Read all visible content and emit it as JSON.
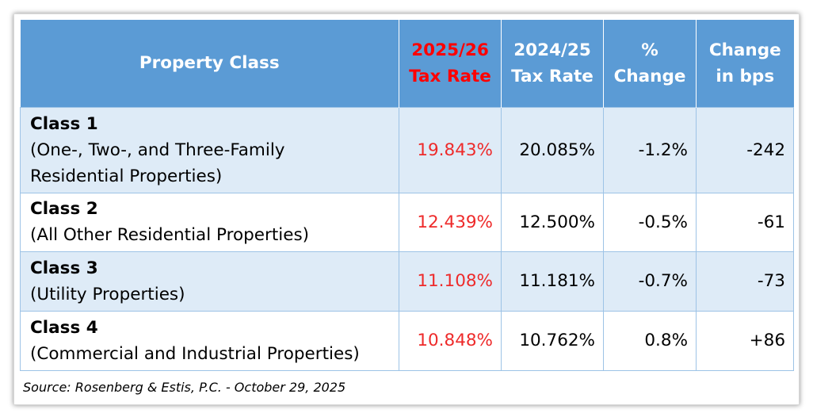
{
  "table": {
    "headers": {
      "property_class": "Property Class",
      "rate_2025_line1": "2025/26",
      "rate_2025_line2": "Tax Rate",
      "rate_2024_line1": "2024/25",
      "rate_2024_line2": "Tax Rate",
      "pct_line1": "%",
      "pct_line2": "Change",
      "bps_line1": "Change",
      "bps_line2": "in bps"
    },
    "rows": [
      {
        "class_name": "Class 1",
        "desc_line1": "(One-, Two-, and Three-Family",
        "desc_line2": "Residential Properties)",
        "rate_2025": "19.843%",
        "rate_2024": "20.085%",
        "pct_change": "-1.2%",
        "bps_change": "-242"
      },
      {
        "class_name": "Class 2",
        "desc_line1": "(All Other Residential Properties)",
        "rate_2025": "12.439%",
        "rate_2024": "12.500%",
        "pct_change": "-0.5%",
        "bps_change": "-61"
      },
      {
        "class_name": "Class 3",
        "desc_line1": "(Utility Properties)",
        "rate_2025": "11.108%",
        "rate_2024": "11.181%",
        "pct_change": "-0.7%",
        "bps_change": "-73"
      },
      {
        "class_name": "Class 4",
        "desc_line1": "(Commercial and Industrial Properties)",
        "rate_2025": "10.848%",
        "rate_2024": "10.762%",
        "pct_change": "0.8%",
        "bps_change": "+86"
      }
    ]
  },
  "source": "Source: Rosenberg & Estis, P.C. - October 29, 2025",
  "colors": {
    "header_bg": "#5b9bd5",
    "header_text": "#ffffff",
    "accent_red": "#ff0000",
    "row_shade": "#deebf7",
    "cell_border": "#9dc3e6"
  }
}
